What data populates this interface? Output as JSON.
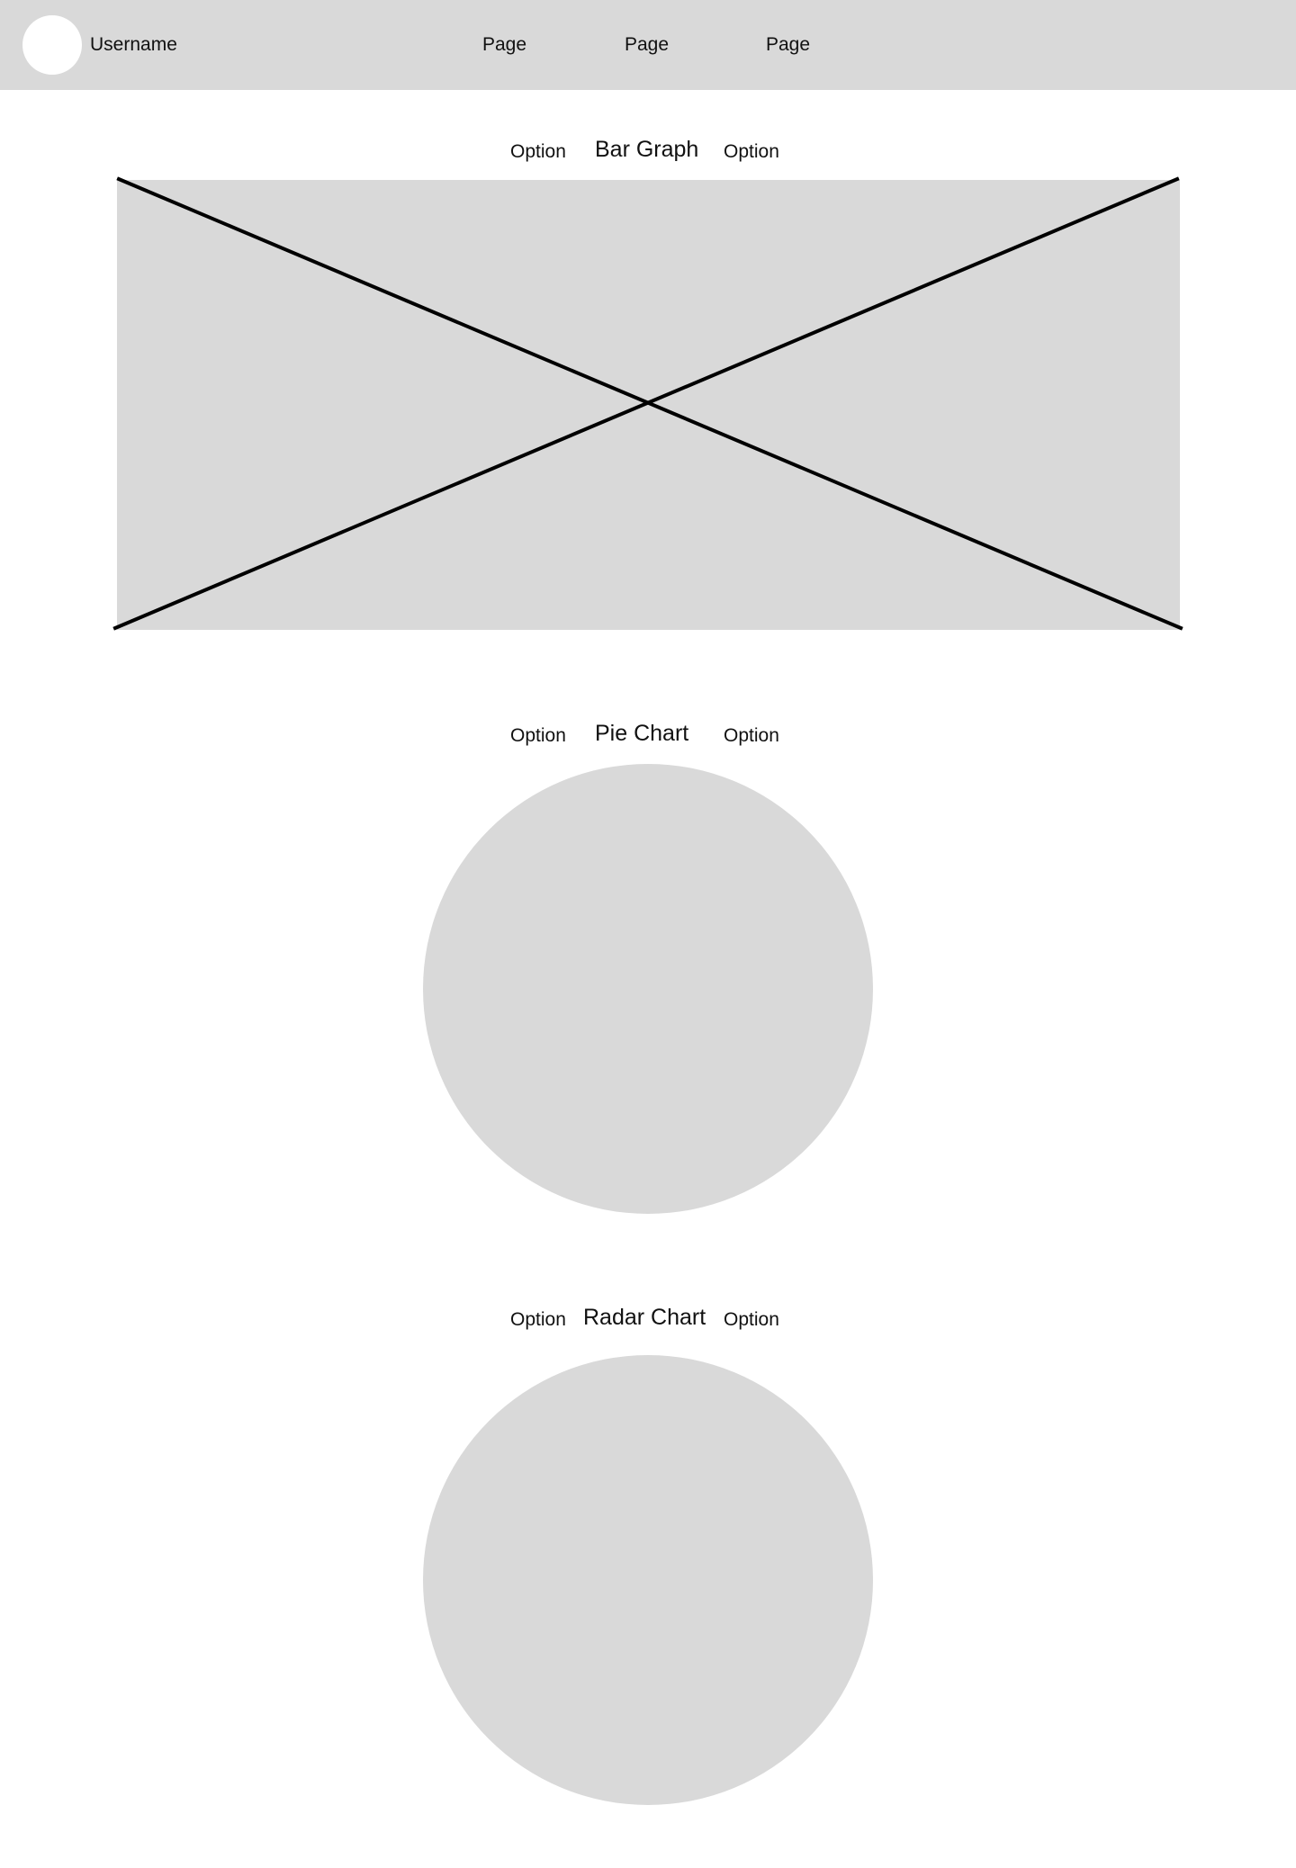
{
  "header": {
    "username": "Username",
    "nav": [
      "Page",
      "Page",
      "Page"
    ],
    "background": "#d9d9d9",
    "avatar_color": "#ffffff"
  },
  "sections": [
    {
      "title": "Bar Graph",
      "option_left": "Option",
      "option_right": "Option"
    },
    {
      "title": "Pie Chart",
      "option_left": "Option",
      "option_right": "Option"
    },
    {
      "title": "Radar Chart",
      "option_left": "Option",
      "option_right": "Option"
    }
  ],
  "placeholder_color": "#d9d9d9",
  "placeholder_line_color": "#000000"
}
